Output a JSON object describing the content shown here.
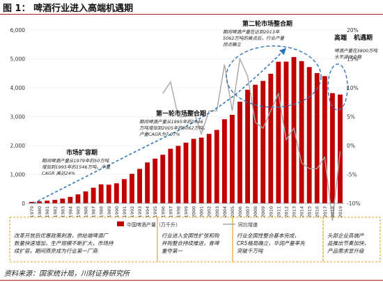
{
  "figure_title": "图 1： 啤酒行业进入高端机遇期",
  "source": "资料来源：国家统计局，川财证券研究所",
  "colors": {
    "bar": "#c00000",
    "line": "#a6a6a6",
    "accent": "#2e75b6",
    "box": "#e0a020",
    "title_bar": "#b01a1a"
  },
  "chart_data": {
    "type": "bar",
    "categories": [
      "1979",
      "1980",
      "1981",
      "1982",
      "1983",
      "1984",
      "1985",
      "1986",
      "1987",
      "1988",
      "1989",
      "1990",
      "1991",
      "1992",
      "1993",
      "1994",
      "1995",
      "1996",
      "1997",
      "1998",
      "1999",
      "2000",
      "2001",
      "2002",
      "2003",
      "2004",
      "2005",
      "2006",
      "2007",
      "2008",
      "2009",
      "2010",
      "2011",
      "2012",
      "2013",
      "2014",
      "2015",
      "2016",
      "2017",
      "2018",
      "2019"
    ],
    "series": [
      {
        "name": "中国啤酒产量（万千升）",
        "axis": "left",
        "values": [
          50,
          69,
          91,
          118,
          163,
          224,
          310,
          413,
          540,
          656,
          644,
          692,
          838,
          1021,
          1192,
          1415,
          1546,
          1682,
          1888,
          1988,
          2099,
          2231,
          2274,
          2403,
          2540,
          2910,
          3062,
          3515,
          3931,
          4103,
          4236,
          4483,
          4899,
          4902,
          5062,
          4922,
          4715,
          4506,
          4402,
          3812,
          3765
        ]
      },
      {
        "name": "同比增速",
        "axis": "right",
        "type": "line",
        "values": [
          null,
          null,
          null,
          null,
          null,
          null,
          null,
          null,
          null,
          null,
          null,
          null,
          null,
          null,
          null,
          null,
          null,
          9,
          11,
          5,
          5,
          6,
          2,
          6,
          6,
          14,
          6,
          15,
          12,
          4,
          3,
          6,
          9,
          1,
          3,
          -3,
          -4,
          -4,
          -2,
          -13,
          -1
        ]
      }
    ],
    "y_left": {
      "min": 0,
      "max": 6000,
      "ticks": [
        "0",
        "1,000",
        "2,000",
        "3,000",
        "4,000",
        "5,000",
        "6,000"
      ]
    },
    "y_right": {
      "min": -10,
      "max": 20,
      "ticks": [
        "-10%",
        "-5%",
        "0%",
        "5%",
        "10%",
        "15%",
        "20%"
      ]
    },
    "legend": {
      "position": "bottom",
      "bar_label": "中国啤酒产量（万千升）",
      "line_label": "同比增速"
    },
    "annotations": [
      {
        "title": "市场扩容期",
        "lines": [
          "期间啤酒产量从1979年的50万吨",
          "增加到1995年的1546万吨，产量",
          "CAGR 高达24%"
        ]
      },
      {
        "title": "第一轮市场整合期",
        "lines": [
          "期间啤酒产量从1995年的1546",
          "万吨增加到2005年的3062万吨，",
          "产量CAGR为7.07%"
        ]
      },
      {
        "title": "第二轮市场整合期",
        "lines": [
          "期间啤酒产量在达到2013年",
          "5062万吨的高点后，行业产量",
          "拐点确立"
        ]
      },
      {
        "title": "高端机遇期",
        "lines": [
          "啤酒产量在3800万吨",
          "水平波动企稳"
        ]
      }
    ],
    "notes": [
      {
        "lines": [
          "改革开放后优惠政策刺激，供给端啤酒厂",
          "数量快速增加，生产规模不断扩大，市场持",
          "续扩容，期间燕京成为行业第一厂商"
        ]
      },
      {
        "lines": [
          "行业进入全国性扩张和购",
          "并购整合持续推进，青啤",
          "重夺第一"
        ]
      },
      {
        "lines": [
          "行业全国性整合基本完成，",
          "CR5格局确立，华润产量率先",
          "突破千万吨"
        ]
      },
      {
        "lines": [
          "头部企业高端产",
          "品推出节奏加快，",
          "产品需求显升级"
        ]
      }
    ]
  }
}
